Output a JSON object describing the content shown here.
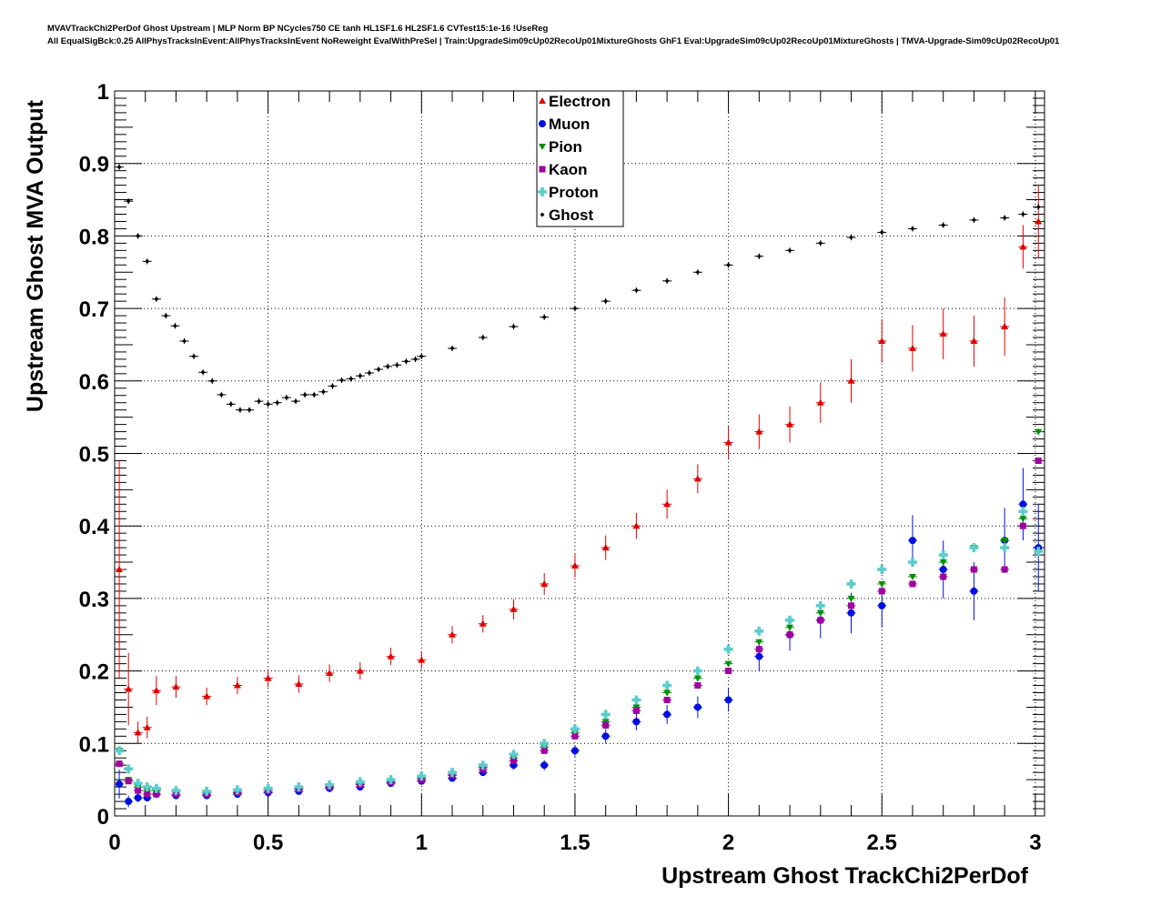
{
  "title_line1": "MVAVTrackChi2PerDof Ghost Upstream | MLP Norm BP NCycles750 CE tanh HL1SF1.6 HL2SF1.6 CVTest15:1e-16 !UseReg",
  "title_line2": "All EqualSigBck:0.25 AllPhysTracksInEvent:AllPhysTracksInEvent NoReweight EvalWithPreSel | Train:UpgradeSim09cUp02RecoUp01MixtureGhosts GhF1 Eval:UpgradeSim09cUp02RecoUp01MixtureGhosts | TMVA-Upgrade-Sim09cUp02RecoUp01",
  "chart_data": {
    "type": "scatter",
    "xlabel": "Upstream Ghost TrackChi2PerDof",
    "ylabel": "Upstream Ghost MVA Output",
    "xlim": [
      0,
      3.03
    ],
    "ylim": [
      0,
      1
    ],
    "xticks": [
      "0",
      "0.5",
      "1",
      "1.5",
      "2",
      "2.5",
      "3"
    ],
    "xtick_values": [
      0,
      0.5,
      1,
      1.5,
      2,
      2.5,
      3
    ],
    "yticks": [
      "0",
      "0.1",
      "0.2",
      "0.3",
      "0.4",
      "0.5",
      "0.6",
      "0.7",
      "0.8",
      "0.9",
      "1"
    ],
    "ytick_values": [
      0,
      0.1,
      0.2,
      0.3,
      0.4,
      0.5,
      0.6,
      0.7,
      0.8,
      0.9,
      1
    ],
    "grid": true,
    "legend_position": "top-center",
    "x": [
      0.015,
      0.045,
      0.076,
      0.106,
      0.136,
      0.2,
      0.3,
      0.4,
      0.5,
      0.6,
      0.7,
      0.8,
      0.9,
      1.0,
      1.1,
      1.2,
      1.3,
      1.4,
      1.5,
      1.6,
      1.7,
      1.8,
      1.9,
      2.0,
      2.1,
      2.2,
      2.3,
      2.4,
      2.5,
      2.6,
      2.7,
      2.8,
      2.9,
      2.96,
      3.01
    ],
    "series": [
      {
        "name": "Electron",
        "color": "#e00000",
        "marker": "triangle",
        "values": [
          0.34,
          0.175,
          0.115,
          0.122,
          0.173,
          0.178,
          0.165,
          0.18,
          0.19,
          0.182,
          0.197,
          0.2,
          0.22,
          0.215,
          0.25,
          0.265,
          0.285,
          0.32,
          0.345,
          0.37,
          0.4,
          0.43,
          0.465,
          0.515,
          0.53,
          0.54,
          0.57,
          0.6,
          0.655,
          0.645,
          0.665,
          0.655,
          0.675,
          0.785,
          0.82
        ],
        "yerr": [
          0.15,
          0.05,
          0.015,
          0.015,
          0.02,
          0.015,
          0.012,
          0.012,
          0.012,
          0.012,
          0.012,
          0.012,
          0.012,
          0.012,
          0.012,
          0.012,
          0.014,
          0.015,
          0.016,
          0.017,
          0.018,
          0.02,
          0.02,
          0.022,
          0.024,
          0.025,
          0.028,
          0.03,
          0.03,
          0.032,
          0.035,
          0.035,
          0.04,
          0.03,
          0.05
        ]
      },
      {
        "name": "Muon",
        "color": "#0010dd",
        "marker": "circle",
        "values": [
          0.044,
          0.02,
          0.025,
          0.025,
          0.03,
          0.028,
          0.028,
          0.03,
          0.032,
          0.034,
          0.038,
          0.04,
          0.045,
          0.048,
          0.052,
          0.06,
          0.07,
          0.07,
          0.09,
          0.11,
          0.13,
          0.14,
          0.15,
          0.16,
          0.22,
          0.25,
          0.27,
          0.28,
          0.29,
          0.38,
          0.34,
          0.31,
          0.38,
          0.43,
          0.37
        ],
        "yerr": [
          0.02,
          0.008,
          0.006,
          0.005,
          0.004,
          0.003,
          0.003,
          0.003,
          0.003,
          0.003,
          0.003,
          0.003,
          0.003,
          0.004,
          0.004,
          0.005,
          0.006,
          0.007,
          0.008,
          0.01,
          0.012,
          0.013,
          0.015,
          0.016,
          0.02,
          0.022,
          0.025,
          0.028,
          0.03,
          0.035,
          0.04,
          0.04,
          0.045,
          0.05,
          0.06
        ]
      },
      {
        "name": "Pion",
        "color": "#009000",
        "marker": "triangle-down",
        "values": [
          0.09,
          0.05,
          0.04,
          0.035,
          0.035,
          0.033,
          0.032,
          0.034,
          0.036,
          0.038,
          0.041,
          0.044,
          0.048,
          0.052,
          0.058,
          0.067,
          0.08,
          0.095,
          0.115,
          0.13,
          0.15,
          0.17,
          0.19,
          0.21,
          0.24,
          0.26,
          0.28,
          0.3,
          0.32,
          0.33,
          0.35,
          0.37,
          0.38,
          0.41,
          0.53
        ]
      },
      {
        "name": "Kaon",
        "color": "#a000a0",
        "marker": "square",
        "values": [
          0.072,
          0.048,
          0.035,
          0.03,
          0.03,
          0.03,
          0.03,
          0.032,
          0.034,
          0.037,
          0.04,
          0.043,
          0.047,
          0.05,
          0.056,
          0.064,
          0.076,
          0.09,
          0.11,
          0.125,
          0.145,
          0.16,
          0.18,
          0.2,
          0.23,
          0.25,
          0.27,
          0.29,
          0.31,
          0.32,
          0.33,
          0.34,
          0.34,
          0.4,
          0.49
        ]
      },
      {
        "name": "Proton",
        "color": "#5ccccc",
        "marker": "cross",
        "values": [
          0.09,
          0.065,
          0.045,
          0.04,
          0.038,
          0.035,
          0.034,
          0.036,
          0.038,
          0.04,
          0.043,
          0.047,
          0.05,
          0.055,
          0.06,
          0.07,
          0.085,
          0.1,
          0.12,
          0.14,
          0.16,
          0.18,
          0.2,
          0.23,
          0.255,
          0.27,
          0.29,
          0.32,
          0.34,
          0.35,
          0.36,
          0.37,
          0.37,
          0.42,
          0.365
        ]
      },
      {
        "name": "Ghost",
        "color": "#000000",
        "marker": "diamond",
        "x": [
          0.015,
          0.045,
          0.076,
          0.106,
          0.136,
          0.167,
          0.197,
          0.227,
          0.258,
          0.288,
          0.318,
          0.348,
          0.379,
          0.409,
          0.439,
          0.47,
          0.5,
          0.53,
          0.56,
          0.59,
          0.62,
          0.65,
          0.68,
          0.71,
          0.74,
          0.77,
          0.8,
          0.83,
          0.86,
          0.89,
          0.92,
          0.95,
          0.98,
          1.0,
          1.1,
          1.2,
          1.3,
          1.4,
          1.5,
          1.6,
          1.7,
          1.8,
          1.9,
          2.0,
          2.1,
          2.2,
          2.3,
          2.4,
          2.5,
          2.6,
          2.7,
          2.8,
          2.9,
          2.96,
          3.01
        ],
        "values": [
          0.895,
          0.848,
          0.8,
          0.765,
          0.713,
          0.69,
          0.676,
          0.655,
          0.634,
          0.612,
          0.6,
          0.581,
          0.568,
          0.56,
          0.56,
          0.572,
          0.568,
          0.57,
          0.577,
          0.572,
          0.581,
          0.581,
          0.585,
          0.593,
          0.601,
          0.603,
          0.607,
          0.611,
          0.616,
          0.62,
          0.622,
          0.627,
          0.63,
          0.634,
          0.645,
          0.66,
          0.675,
          0.688,
          0.7,
          0.71,
          0.725,
          0.738,
          0.75,
          0.76,
          0.772,
          0.78,
          0.79,
          0.798,
          0.805,
          0.81,
          0.815,
          0.822,
          0.825,
          0.83,
          0.84
        ]
      }
    ]
  }
}
